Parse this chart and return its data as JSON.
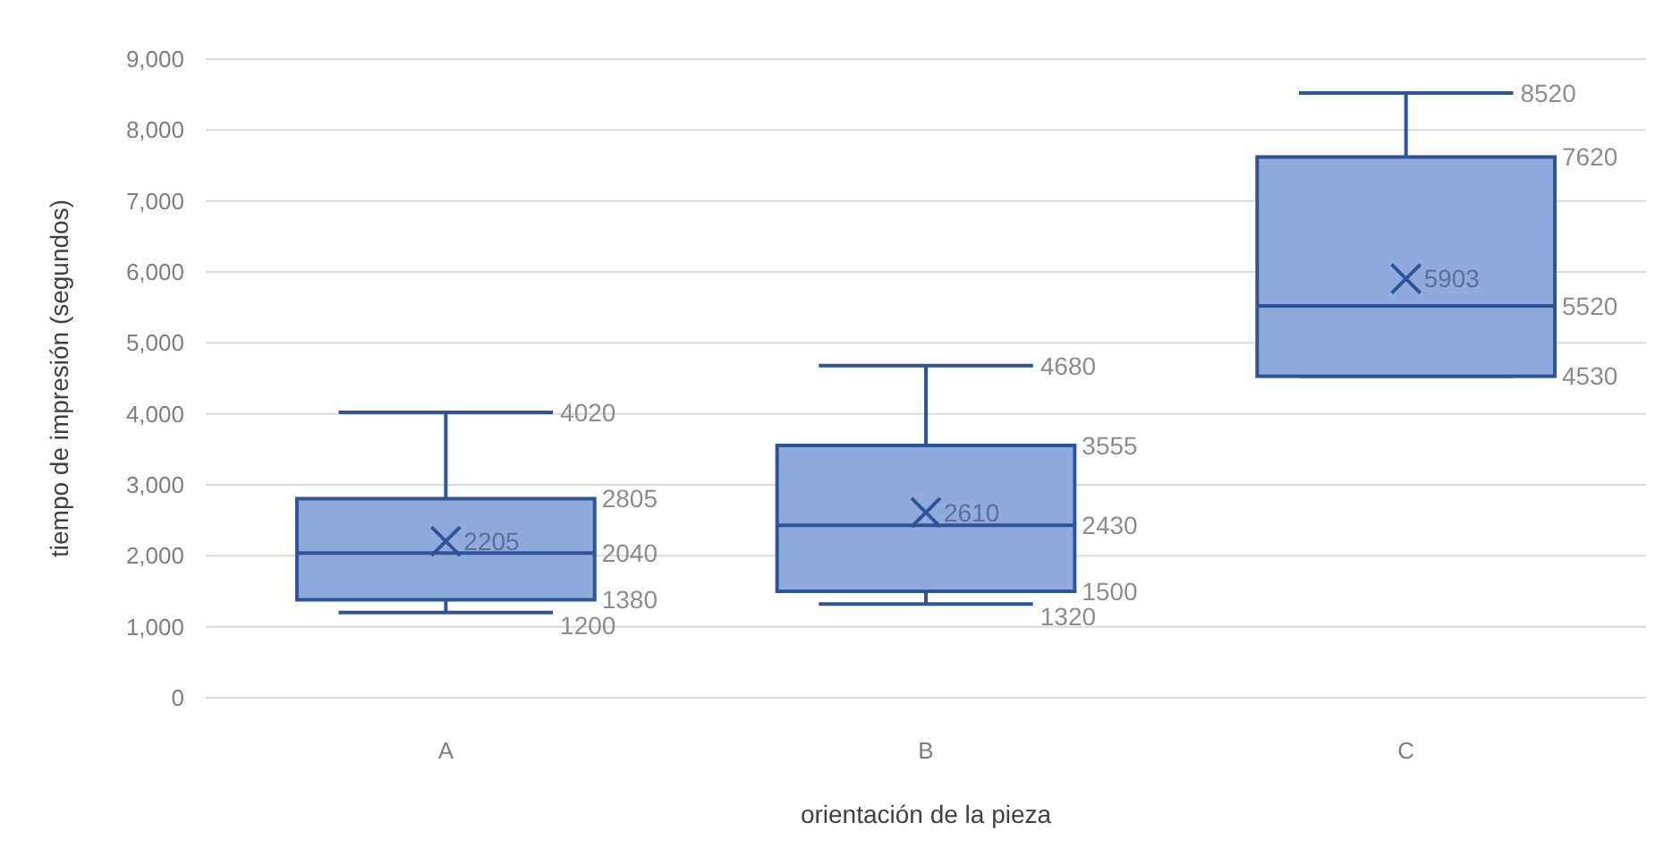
{
  "chart_data": {
    "type": "box",
    "xlabel": "orientación de la pieza",
    "ylabel": "tiempo de impresión (segundos)",
    "categories": [
      "A",
      "B",
      "C"
    ],
    "boxes": [
      {
        "low": 1200,
        "q1": 1380,
        "median": 2040,
        "q3": 2805,
        "high": 4020,
        "mean": 2205
      },
      {
        "low": 1320,
        "q1": 1500,
        "median": 2430,
        "q3": 3555,
        "high": 4680,
        "mean": 2610
      },
      {
        "low": 4530,
        "q1": 4530,
        "median": 5520,
        "q3": 7620,
        "high": 8520,
        "mean": 5903
      }
    ],
    "annotations": [
      "4020",
      "2805",
      "2205",
      "2040",
      "1380",
      "1200",
      "4680",
      "3555",
      "2610",
      "2430",
      "1500",
      "1320",
      "8520",
      "7620",
      "5903",
      "5520",
      "4530"
    ],
    "color": "#8faadc",
    "ylim": [
      0,
      9000
    ],
    "yticks": [
      {
        "value": 0,
        "label": "0"
      },
      {
        "value": 1000,
        "label": "1,000"
      },
      {
        "value": 2000,
        "label": "2,000"
      },
      {
        "value": 3000,
        "label": "3,000"
      },
      {
        "value": 4000,
        "label": "4,000"
      },
      {
        "value": 5000,
        "label": "5,000"
      },
      {
        "value": 6000,
        "label": "6,000"
      },
      {
        "value": 7000,
        "label": "7,000"
      },
      {
        "value": 8000,
        "label": "8,000"
      },
      {
        "value": 9000,
        "label": "9,000"
      }
    ],
    "grid": "y",
    "marker": "cross"
  }
}
